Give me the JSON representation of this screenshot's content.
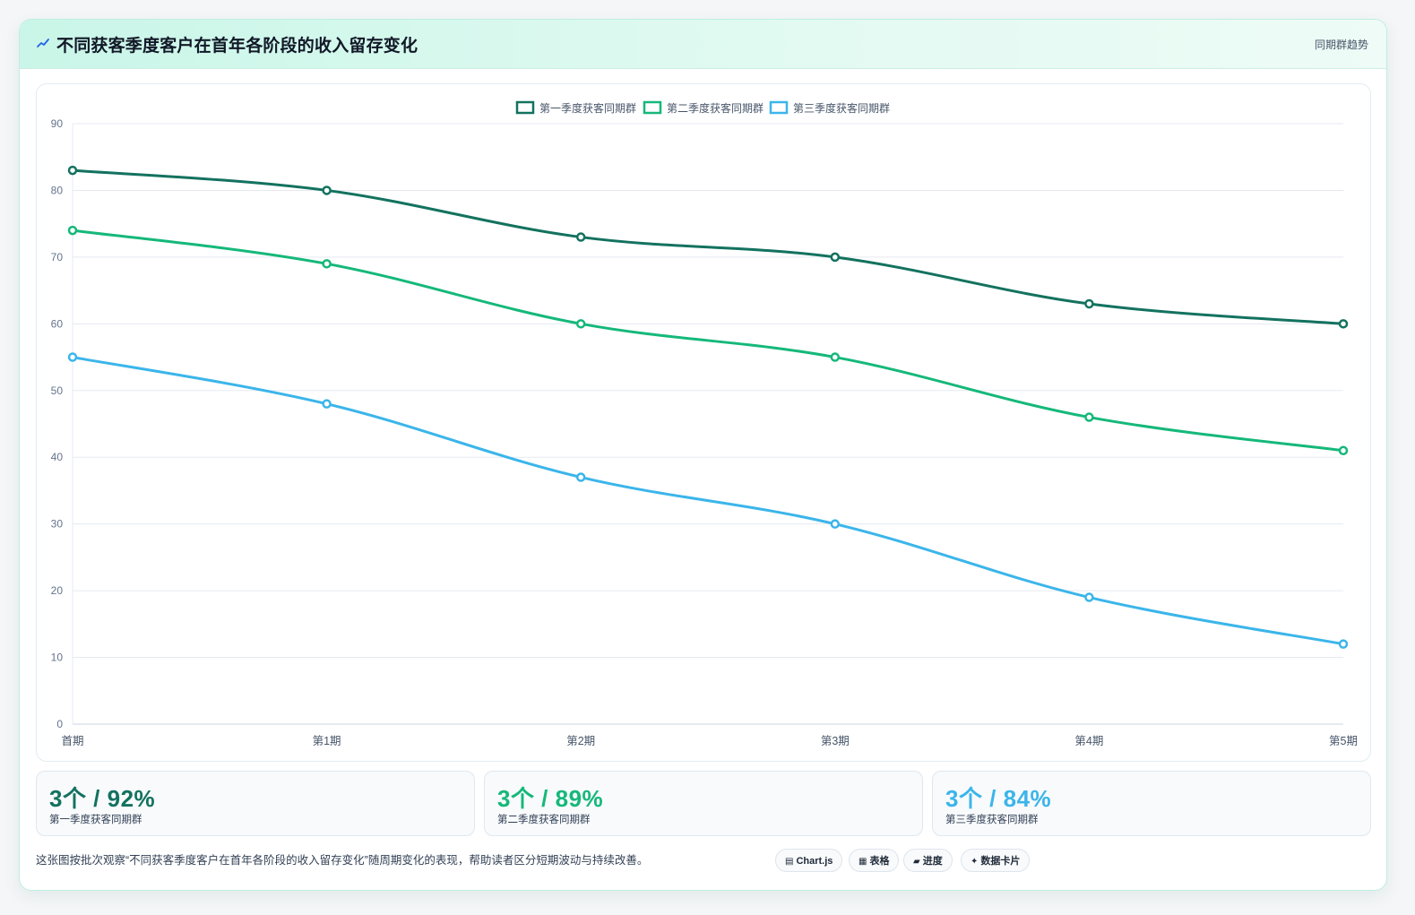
{
  "header": {
    "title": "不同获客季度客户在首年各阶段的收入留存变化",
    "tag": "同期群趋势"
  },
  "colors": {
    "q1": "#13725f",
    "q2": "#15b87a",
    "q3": "#3bb5ea"
  },
  "chart_data": {
    "type": "line",
    "categories": [
      "首期",
      "第1期",
      "第2期",
      "第3期",
      "第4期",
      "第5期"
    ],
    "series": [
      {
        "name": "第一季度获客同期群",
        "values": [
          83,
          80,
          73,
          70,
          63,
          60
        ]
      },
      {
        "name": "第二季度获客同期群",
        "values": [
          74,
          69,
          60,
          55,
          46,
          41
        ]
      },
      {
        "name": "第三季度获客同期群",
        "values": [
          55,
          48,
          37,
          30,
          19,
          12
        ]
      }
    ],
    "ylim": [
      0,
      90
    ],
    "yticks": [
      0,
      10,
      20,
      30,
      40,
      50,
      60,
      70,
      80,
      90
    ],
    "grid": true,
    "legend": "top-center"
  },
  "stats": [
    {
      "value": "3个 / 92%",
      "label": "第一季度获客同期群"
    },
    {
      "value": "3个 / 89%",
      "label": "第二季度获客同期群"
    },
    {
      "value": "3个 / 84%",
      "label": "第三季度获客同期群"
    }
  ],
  "footer": {
    "description": "这张图按批次观察“不同获客季度客户在首年各阶段的收入留存变化”随周期变化的表现，帮助读者区分短期波动与持续改善。",
    "chips": [
      {
        "glyph": "▤",
        "label": "Chart.js"
      },
      {
        "glyph": "▦",
        "label": "表格"
      },
      {
        "glyph": "▰",
        "label": "进度"
      },
      {
        "glyph": "✦",
        "label": "数据卡片"
      }
    ]
  }
}
